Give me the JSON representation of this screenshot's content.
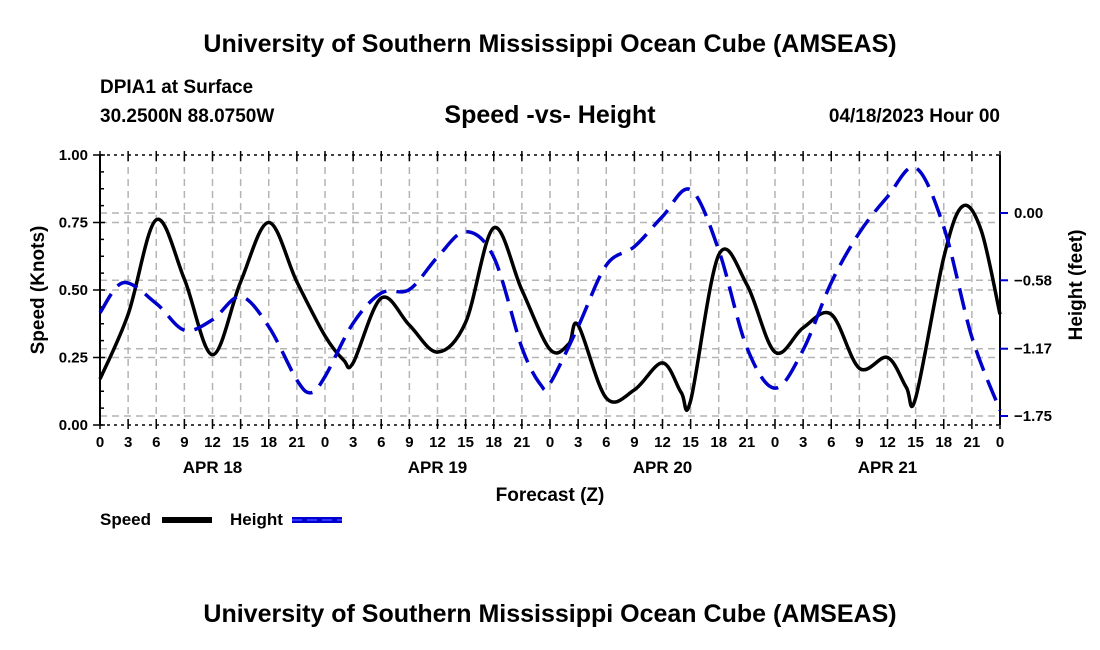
{
  "header": {
    "title": "University of Southern Mississippi Ocean Cube (AMSEAS)",
    "station": "DPIA1 at Surface",
    "coords": "30.2500N  88.0750W",
    "subtitle": "Speed -vs- Height",
    "date": "04/18/2023 Hour 00"
  },
  "footer": {
    "title": "University of Southern Mississippi Ocean Cube (AMSEAS)"
  },
  "chart_data": {
    "type": "line",
    "title": "Speed -vs- Height",
    "xlabel": "Forecast (Z)",
    "ylabel": "Speed (Knots)",
    "y2label": "Height (feet)",
    "xlim": [
      0,
      96
    ],
    "ylim": [
      0,
      1
    ],
    "y2lim": [
      -1.75,
      0.58
    ],
    "x_tick_hours": [
      0,
      3,
      6,
      9,
      12,
      15,
      18,
      21,
      24,
      27,
      30,
      33,
      36,
      39,
      42,
      45,
      48,
      51,
      54,
      57,
      60,
      63,
      66,
      69,
      72,
      75,
      78,
      81,
      84,
      87,
      90,
      93,
      96
    ],
    "x_tick_labels": [
      "0",
      "3",
      "6",
      "9",
      "12",
      "15",
      "18",
      "21",
      "0",
      "3",
      "6",
      "9",
      "12",
      "15",
      "18",
      "21",
      "0",
      "3",
      "6",
      "9",
      "12",
      "15",
      "18",
      "21",
      "0",
      "3",
      "6",
      "9",
      "12",
      "15",
      "18",
      "21",
      "0"
    ],
    "day_labels": [
      {
        "label": "APR 18",
        "hour": 12
      },
      {
        "label": "APR 19",
        "hour": 36
      },
      {
        "label": "APR 20",
        "hour": 60
      },
      {
        "label": "APR 21",
        "hour": 84
      }
    ],
    "y_ticks": [
      "0.00",
      "0.25",
      "0.50",
      "0.75",
      "1.00"
    ],
    "y_tick_values": [
      0,
      0.25,
      0.5,
      0.75,
      1.0
    ],
    "y2_ticks": [
      "0.00",
      "−0.58",
      "−1.17",
      "−1.75"
    ],
    "y2_tick_values": [
      0,
      -0.58,
      -1.17,
      -1.75
    ],
    "grid": true,
    "legend": {
      "placement": "bottom-left",
      "entries": [
        "Speed",
        "Height"
      ]
    },
    "series": [
      {
        "name": "Speed",
        "axis": "left",
        "color": "#000000",
        "style": "solid",
        "x": [
          0,
          3,
          6,
          9,
          12,
          15,
          18,
          21,
          24,
          26,
          27,
          30,
          33,
          36,
          39,
          42,
          45,
          48,
          50,
          51,
          54,
          57,
          60,
          62,
          63,
          66,
          69,
          72,
          75,
          78,
          81,
          84,
          86,
          87,
          90,
          92,
          94,
          96
        ],
        "values": [
          0.17,
          0.41,
          0.76,
          0.54,
          0.26,
          0.53,
          0.75,
          0.53,
          0.33,
          0.24,
          0.23,
          0.47,
          0.37,
          0.27,
          0.38,
          0.73,
          0.5,
          0.28,
          0.3,
          0.37,
          0.1,
          0.13,
          0.23,
          0.12,
          0.09,
          0.63,
          0.52,
          0.27,
          0.36,
          0.41,
          0.21,
          0.25,
          0.14,
          0.1,
          0.62,
          0.81,
          0.72,
          0.41
        ]
      },
      {
        "name": "Height",
        "axis": "right",
        "color": "#0000cc",
        "style": "dashed",
        "x": [
          0,
          2.5,
          6,
          9,
          12,
          15,
          18,
          21,
          22.5,
          24,
          27,
          30,
          33,
          36,
          39,
          42,
          45,
          47,
          48,
          51,
          54,
          57,
          60,
          63,
          66,
          69,
          72,
          75,
          78,
          81,
          84,
          87,
          90,
          93,
          96
        ],
        "values": [
          -0.86,
          -0.6,
          -0.78,
          -1.01,
          -0.92,
          -0.72,
          -0.98,
          -1.44,
          -1.55,
          -1.41,
          -0.95,
          -0.69,
          -0.66,
          -0.38,
          -0.16,
          -0.38,
          -1.16,
          -1.48,
          -1.47,
          -0.98,
          -0.45,
          -0.29,
          -0.03,
          0.2,
          -0.32,
          -1.16,
          -1.51,
          -1.18,
          -0.6,
          -0.17,
          0.14,
          0.39,
          -0.12,
          -1.07,
          -1.7
        ]
      }
    ]
  }
}
